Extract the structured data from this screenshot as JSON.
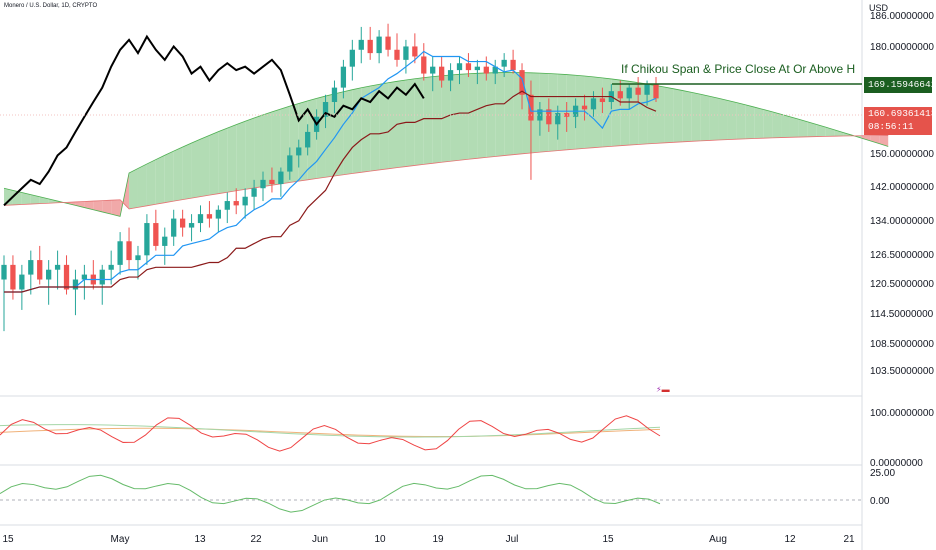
{
  "header": {
    "symbol_title": "Monero / U.S. Dollar, 1D, CRYPTO",
    "currency": "USD"
  },
  "annotation": {
    "text": "If Chikou Span & Price Close At Or Above H",
    "target_price": "169.15946642",
    "color": "#1b5e20"
  },
  "last_price": {
    "value": "160.69361413",
    "countdown": "08:56:11",
    "color": "#e5534b"
  },
  "colors": {
    "bull": "#26a69a",
    "bear": "#ef5350",
    "cloud_bull": "#a5d6a7",
    "cloud_bear": "#ef9a9a",
    "tenkan": "#2196f3",
    "kijun": "#8b1a1a",
    "chikou": "#000000",
    "rsi": "#ef4444",
    "rsi_ma": "#f0b27a",
    "rsi_ma2": "#a5d6a7",
    "osc": "#66bb6a",
    "grid": "#e9ebf0",
    "text": "#131722"
  },
  "chart_data": {
    "type": "candlestick",
    "panes": [
      {
        "name": "price",
        "y_ticks": [
          "186.00000000",
          "180.00000000",
          "169.15946642",
          "160.69361413",
          "150.00000000",
          "142.00000000",
          "134.00000000",
          "126.50000000",
          "120.50000000",
          "114.50000000",
          "108.50000000",
          "103.50000000"
        ],
        "ylim": [
          100,
          188
        ],
        "scale": "log"
      },
      {
        "name": "oscillator",
        "y_ticks": [
          "100.00000000",
          "0.00000000"
        ],
        "ylim": [
          -20,
          120
        ]
      },
      {
        "name": "momentum",
        "y_ticks": [
          "25.00",
          "0.00"
        ],
        "ylim": [
          -10,
          30
        ]
      }
    ],
    "x_ticks": [
      "15",
      "May",
      "13",
      "22",
      "Jun",
      "10",
      "19",
      "Jul",
      "15",
      "Aug",
      "12",
      "21"
    ],
    "candles": [
      [
        118,
        123,
        108,
        121
      ],
      [
        121,
        123,
        114,
        116
      ],
      [
        116,
        121,
        112,
        119
      ],
      [
        119,
        124,
        115,
        122
      ],
      [
        122,
        125,
        117,
        118
      ],
      [
        118,
        122,
        113,
        120
      ],
      [
        120,
        124,
        116,
        121
      ],
      [
        121,
        123,
        115,
        116
      ],
      [
        116,
        120,
        111,
        118
      ],
      [
        118,
        121,
        114,
        119
      ],
      [
        119,
        122,
        116,
        117
      ],
      [
        117,
        121,
        113,
        120
      ],
      [
        120,
        124,
        117,
        121
      ],
      [
        121,
        128,
        119,
        126
      ],
      [
        126,
        129,
        120,
        122
      ],
      [
        122,
        125,
        118,
        123
      ],
      [
        123,
        132,
        121,
        130
      ],
      [
        130,
        133,
        124,
        125
      ],
      [
        125,
        129,
        121,
        127
      ],
      [
        127,
        133,
        125,
        131
      ],
      [
        131,
        133,
        127,
        129
      ],
      [
        129,
        132,
        126,
        130
      ],
      [
        130,
        134,
        128,
        132
      ],
      [
        132,
        135,
        129,
        131
      ],
      [
        131,
        134,
        128,
        133
      ],
      [
        133,
        137,
        130,
        135
      ],
      [
        135,
        138,
        132,
        134
      ],
      [
        134,
        138,
        131,
        136
      ],
      [
        136,
        140,
        133,
        138
      ],
      [
        138,
        142,
        135,
        140
      ],
      [
        140,
        143,
        137,
        139
      ],
      [
        139,
        143,
        136,
        142
      ],
      [
        142,
        148,
        140,
        146
      ],
      [
        146,
        150,
        143,
        148
      ],
      [
        148,
        154,
        146,
        152
      ],
      [
        152,
        158,
        150,
        156
      ],
      [
        156,
        162,
        153,
        160
      ],
      [
        160,
        166,
        157,
        164
      ],
      [
        164,
        172,
        161,
        170
      ],
      [
        170,
        178,
        166,
        175
      ],
      [
        175,
        182,
        171,
        178
      ],
      [
        178,
        182,
        172,
        174
      ],
      [
        174,
        181,
        171,
        179
      ],
      [
        179,
        183,
        173,
        175
      ],
      [
        175,
        180,
        170,
        172
      ],
      [
        172,
        178,
        168,
        176
      ],
      [
        176,
        180,
        171,
        173
      ],
      [
        173,
        177,
        166,
        168
      ],
      [
        168,
        173,
        163,
        170
      ],
      [
        170,
        173,
        164,
        166
      ],
      [
        166,
        171,
        163,
        169
      ],
      [
        169,
        173,
        165,
        171
      ],
      [
        171,
        174,
        167,
        169
      ],
      [
        169,
        172,
        165,
        170
      ],
      [
        170,
        173,
        166,
        168
      ],
      [
        168,
        172,
        165,
        170
      ],
      [
        170,
        174,
        167,
        172
      ],
      [
        172,
        175,
        168,
        169
      ],
      [
        169,
        171,
        158,
        162
      ],
      [
        162,
        166,
        140,
        155
      ],
      [
        155,
        160,
        151,
        158
      ],
      [
        158,
        161,
        152,
        154
      ],
      [
        154,
        159,
        150,
        157
      ],
      [
        157,
        160,
        152,
        156
      ],
      [
        156,
        161,
        153,
        159
      ],
      [
        159,
        162,
        155,
        158
      ],
      [
        158,
        163,
        156,
        161
      ],
      [
        161,
        164,
        157,
        160
      ],
      [
        160,
        165,
        158,
        163
      ],
      [
        163,
        166,
        159,
        161
      ],
      [
        161,
        165,
        158,
        164
      ],
      [
        164,
        167,
        160,
        162
      ],
      [
        162,
        166,
        159,
        165
      ],
      [
        165,
        167,
        160,
        161
      ]
    ]
  }
}
